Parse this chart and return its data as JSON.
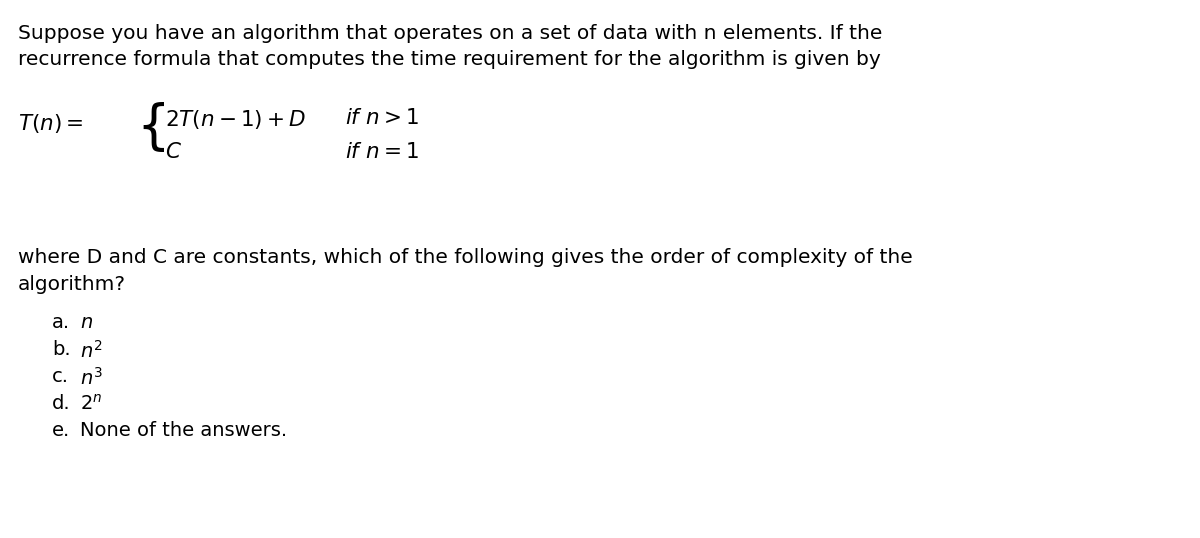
{
  "background_color": "#ffffff",
  "figsize": [
    12.0,
    5.38
  ],
  "dpi": 100,
  "text_color": "#000000",
  "intro_line1": "Suppose you have an algorithm that operates on a set of data with n elements. If the",
  "intro_line2": "recurrence formula that computes the time requirement for the algorithm is given by",
  "continuation_line1": "where D and C are constants, which of the following gives the order of complexity of the",
  "continuation_line2": "algorithm?",
  "font_size_body": 14.5,
  "font_size_formula": 15.5,
  "font_size_options": 14.0,
  "font_size_brace": 38
}
